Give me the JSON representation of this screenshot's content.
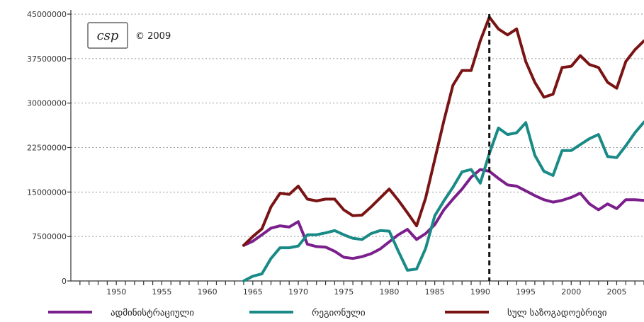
{
  "logo": {
    "text": "csp",
    "copyright": "© 2009"
  },
  "colors": {
    "series_1": "#7b1f8c",
    "series_2": "#1a8a86",
    "series_3": "#7a1414",
    "grid": "#9a9a9a",
    "marker": "#111111"
  },
  "legend": {
    "labels": [
      "ადმინისტრაციული",
      "რეგიონული",
      "სულ საზოგადოებრივი"
    ]
  },
  "chart_data": {
    "type": "line",
    "x_tick_labels": [
      "1950",
      "1955",
      "1960",
      "1965",
      "1970",
      "1975",
      "1980",
      "1985",
      "1990",
      "1995",
      "2000",
      "2005"
    ],
    "y_tick_labels": [
      "0",
      "7500000",
      "15000000",
      "22500000",
      "30000000",
      "37500000",
      "45000000"
    ],
    "xlim": [
      1945,
      2008
    ],
    "ylim": [
      0,
      45000000
    ],
    "grid": true,
    "legend_position": "bottom",
    "marker_line": {
      "x": 1991,
      "style": "dashed"
    },
    "series": [
      {
        "name": "ადმინისტრაციული",
        "color": "#7b1f8c",
        "x": [
          1964,
          1965,
          1966,
          1967,
          1968,
          1969,
          1970,
          1971,
          1972,
          1973,
          1974,
          1975,
          1976,
          1977,
          1978,
          1979,
          1980,
          1981,
          1982,
          1983,
          1984,
          1985,
          1986,
          1987,
          1988,
          1989,
          1990,
          1991,
          1992,
          1993,
          1994,
          1995,
          1996,
          1997,
          1998,
          1999,
          2000,
          2001,
          2002,
          2003,
          2004,
          2005,
          2006,
          2007,
          2008
        ],
        "values": [
          6000000,
          6700000,
          7800000,
          8900000,
          9300000,
          9100000,
          10000000,
          6200000,
          5800000,
          5700000,
          5000000,
          4000000,
          3800000,
          4100000,
          4600000,
          5400000,
          6600000,
          7800000,
          8700000,
          7000000,
          8000000,
          9500000,
          12000000,
          13800000,
          15500000,
          17500000,
          18800000,
          18500000,
          17300000,
          16200000,
          16000000,
          15200000,
          14400000,
          13700000,
          13300000,
          13600000,
          14100000,
          14800000,
          13000000,
          12000000,
          13000000,
          12200000,
          13700000,
          13700000,
          13600000
        ]
      },
      {
        "name": "რეგიონული",
        "color": "#1a8a86",
        "x": [
          1964,
          1965,
          1966,
          1967,
          1968,
          1969,
          1970,
          1971,
          1972,
          1973,
          1974,
          1975,
          1976,
          1977,
          1978,
          1979,
          1980,
          1981,
          1982,
          1983,
          1984,
          1985,
          1986,
          1987,
          1988,
          1989,
          1990,
          1991,
          1992,
          1993,
          1994,
          1995,
          1996,
          1997,
          1998,
          1999,
          2000,
          2001,
          2002,
          2003,
          2004,
          2005,
          2006,
          2007,
          2008
        ],
        "values": [
          0,
          800000,
          1200000,
          3800000,
          5600000,
          5600000,
          5900000,
          7800000,
          7800000,
          8100000,
          8500000,
          7800000,
          7200000,
          7000000,
          8000000,
          8500000,
          8400000,
          5000000,
          1800000,
          2000000,
          5500000,
          11000000,
          13500000,
          15800000,
          18400000,
          18800000,
          16500000,
          21500000,
          25800000,
          24700000,
          25000000,
          26700000,
          21200000,
          18500000,
          17800000,
          22000000,
          22000000,
          23000000,
          24000000,
          24700000,
          21000000,
          20800000,
          22800000,
          25000000,
          26800000
        ]
      },
      {
        "name": "სულ საზოგადოებრივი",
        "color": "#7a1414",
        "x": [
          1964,
          1965,
          1966,
          1967,
          1968,
          1969,
          1970,
          1971,
          1972,
          1973,
          1974,
          1975,
          1976,
          1977,
          1978,
          1979,
          1980,
          1981,
          1982,
          1983,
          1984,
          1985,
          1986,
          1987,
          1988,
          1989,
          1990,
          1991,
          1992,
          1993,
          1994,
          1995,
          1996,
          1997,
          1998,
          1999,
          2000,
          2001,
          2002,
          2003,
          2004,
          2005,
          2006,
          2007,
          2008
        ],
        "values": [
          6000000,
          7500000,
          8800000,
          12500000,
          14800000,
          14600000,
          16000000,
          13800000,
          13500000,
          13800000,
          13800000,
          12000000,
          11000000,
          11100000,
          12500000,
          14000000,
          15500000,
          13600000,
          11500000,
          9300000,
          14000000,
          20500000,
          27000000,
          33000000,
          35500000,
          35500000,
          40500000,
          44500000,
          42500000,
          41500000,
          42500000,
          37000000,
          33500000,
          31000000,
          31500000,
          36000000,
          36200000,
          38000000,
          36500000,
          36000000,
          33500000,
          32500000,
          37000000,
          39000000,
          40500000
        ]
      }
    ]
  }
}
